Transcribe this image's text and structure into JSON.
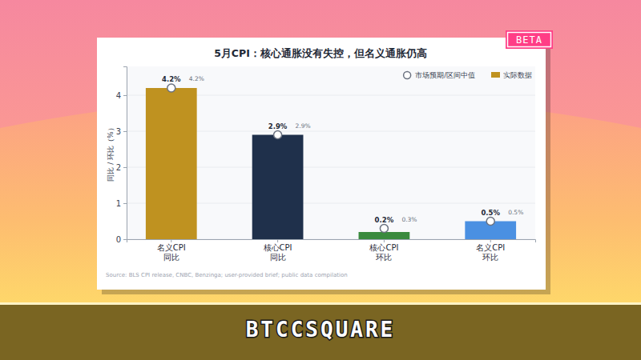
{
  "chart_data": {
    "type": "bar",
    "title": "5月CPI：核心通胀没有失控，但名义通胀仍高",
    "y_label": "同比 / 环比（%）",
    "source": "Source: BLS CPI release, CNBC, Benzinga; user-provided brief; public data compilation",
    "categories": [
      "名义CPI\n同比",
      "核心CPI\n同比",
      "核心CPI\n环比",
      "名义CPI\n环比"
    ],
    "series": [
      {
        "name": "市场预期/区间中值",
        "type": "scatter",
        "marker": "circle",
        "color": "#ffffff",
        "values": [
          4.2,
          2.9,
          0.3,
          0.5
        ],
        "value_labels": [
          "4.2%",
          "2.9%",
          "0.3%",
          "0.5%"
        ]
      },
      {
        "name": "实际数据",
        "type": "bar",
        "colors": [
          "#bf9220",
          "#1f304b",
          "#3a8a3e",
          "#4a90e2"
        ],
        "values": [
          4.2,
          2.9,
          0.2,
          0.5
        ],
        "value_labels": [
          "4.2%",
          "2.9%",
          "0.2%",
          "0.5%"
        ]
      }
    ],
    "ylim": [
      0,
      4.8
    ],
    "yticks": [
      0,
      1,
      2,
      3,
      4
    ],
    "grid": true,
    "legend": "upper right",
    "data_labels": true
  },
  "badge": "BETA",
  "brand": "BTCCSQUARE"
}
